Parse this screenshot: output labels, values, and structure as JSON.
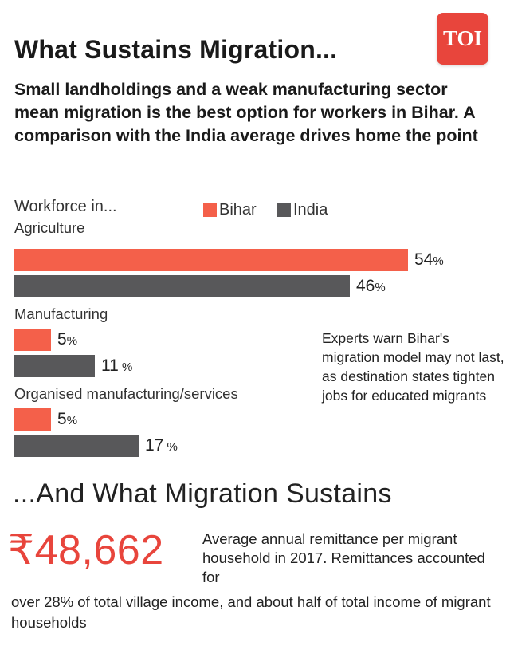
{
  "title": "What Sustains Migration...",
  "logo_text": "TOI",
  "subtitle": "Small landholdings and a weak manufacturing sector mean migration is the best option for workers in Bihar. A comparison with the India average drives home the point",
  "colors": {
    "bihar": "#f4604a",
    "india": "#58585a",
    "accent": "#e8453c"
  },
  "chart_data": {
    "type": "bar",
    "orientation": "horizontal",
    "title": "Workforce in...",
    "categories": [
      "Agriculture",
      "Manufacturing",
      "Organised manufacturing/services"
    ],
    "series": [
      {
        "name": "Bihar",
        "values": [
          54,
          5,
          5
        ]
      },
      {
        "name": "India",
        "values": [
          46,
          11,
          17
        ]
      }
    ],
    "value_unit": "%",
    "xlim": [
      0,
      100
    ],
    "legend_position": "top"
  },
  "note": "Experts warn Bihar's migration model may not last, as destination states tighten jobs for educated migrants",
  "section2_title": "...And What Migration Sustains",
  "remittance": {
    "amount": "₹48,662",
    "description_top": "Average annual remittance per migrant household in 2017. Remittances accounted for",
    "description_bottom": "over 28% of total village income, and about half of total income of migrant households"
  }
}
